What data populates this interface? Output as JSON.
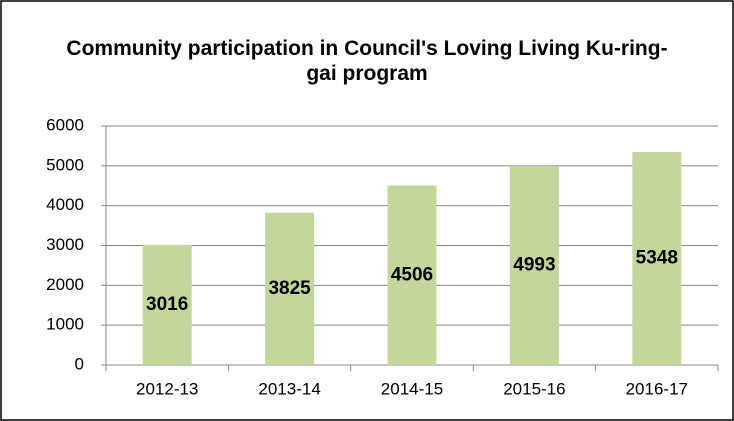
{
  "chart_data": {
    "type": "bar",
    "title": "Community participation in Council's Loving Living Ku-ring-gai program",
    "categories": [
      "2012-13",
      "2013-14",
      "2014-15",
      "2015-16",
      "2016-17"
    ],
    "values": [
      3016,
      3825,
      4506,
      4993,
      5348
    ],
    "color": "#c3d69b",
    "ylim": [
      0,
      6000
    ],
    "yticks": [
      0,
      1000,
      2000,
      3000,
      4000,
      5000,
      6000
    ],
    "grid": true
  }
}
